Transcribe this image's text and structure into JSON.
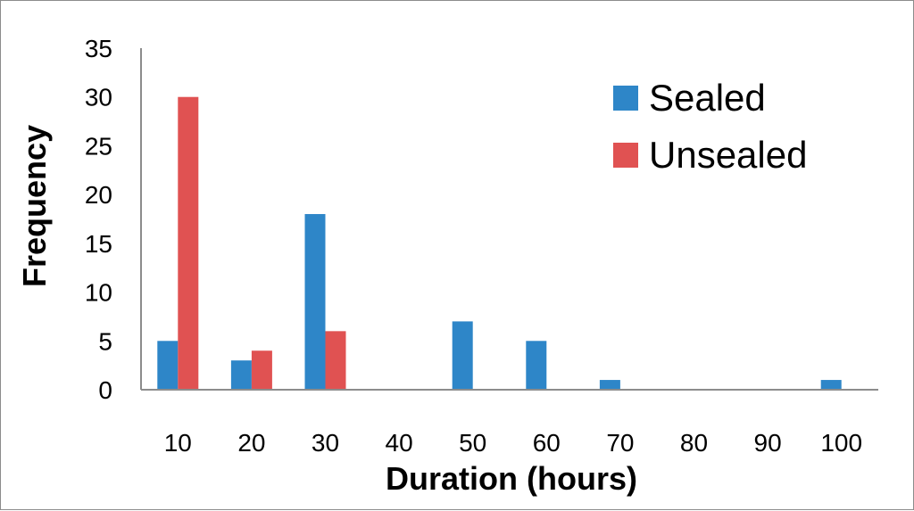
{
  "chart_data": {
    "type": "bar",
    "title": "",
    "xlabel": "Duration (hours)",
    "ylabel": "Frequency",
    "categories": [
      "10",
      "20",
      "30",
      "40",
      "50",
      "60",
      "70",
      "80",
      "90",
      "100"
    ],
    "series": [
      {
        "name": "Sealed",
        "color": "#2e86c8",
        "values": [
          5,
          3,
          18,
          0,
          7,
          5,
          1,
          0,
          0,
          1
        ]
      },
      {
        "name": "Unsealed",
        "color": "#e05252",
        "values": [
          30,
          4,
          6,
          0,
          0,
          0,
          0,
          0,
          0,
          0
        ]
      }
    ],
    "ylim": [
      0,
      35
    ],
    "yticks": [
      0,
      5,
      10,
      15,
      20,
      25,
      30,
      35
    ],
    "grid": false,
    "legend": "top-right"
  }
}
